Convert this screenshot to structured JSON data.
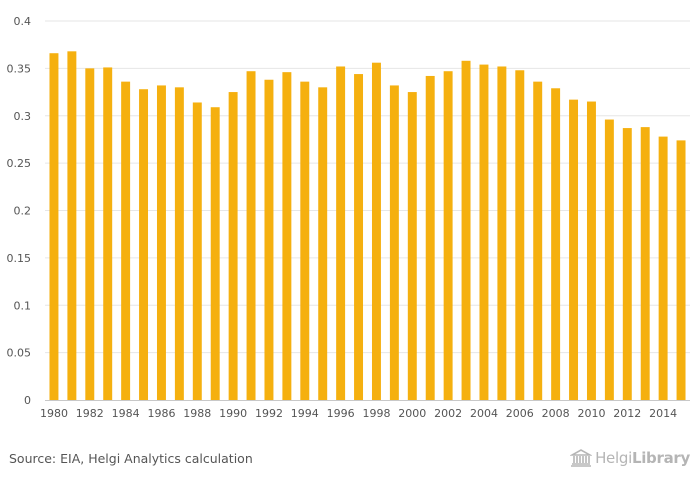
{
  "chart_data": {
    "type": "bar",
    "title": "",
    "xlabel": "",
    "ylabel": "",
    "categories": [
      "1980",
      "1981",
      "1982",
      "1983",
      "1984",
      "1985",
      "1986",
      "1987",
      "1988",
      "1989",
      "1990",
      "1991",
      "1992",
      "1993",
      "1994",
      "1995",
      "1996",
      "1997",
      "1998",
      "1999",
      "2000",
      "2001",
      "2002",
      "2003",
      "2004",
      "2005",
      "2006",
      "2007",
      "2008",
      "2009",
      "2010",
      "2011",
      "2012",
      "2013",
      "2014",
      "2015"
    ],
    "values": [
      0.366,
      0.368,
      0.35,
      0.351,
      0.336,
      0.328,
      0.332,
      0.33,
      0.314,
      0.309,
      0.325,
      0.347,
      0.338,
      0.346,
      0.336,
      0.33,
      0.352,
      0.344,
      0.356,
      0.332,
      0.325,
      0.342,
      0.347,
      0.358,
      0.354,
      0.352,
      0.348,
      0.336,
      0.329,
      0.317,
      0.315,
      0.296,
      0.287,
      0.288,
      0.278,
      0.274
    ],
    "x_tick_labels": [
      "1980",
      "1982",
      "1984",
      "1986",
      "1988",
      "1990",
      "1992",
      "1994",
      "1996",
      "1998",
      "2000",
      "2002",
      "2004",
      "2006",
      "2008",
      "2010",
      "2012",
      "2014"
    ],
    "y_tick_labels": [
      "0",
      "0.05",
      "0.1",
      "0.15",
      "0.2",
      "0.25",
      "0.3",
      "0.35",
      "0.4"
    ],
    "ylim": [
      0,
      0.4
    ],
    "grid": true,
    "legend": "none",
    "bar_color": "#f5b00f"
  },
  "footer": {
    "source": "Source: EIA, Helgi Analytics calculation",
    "brand_light": "Helgi",
    "brand_strong": "Library",
    "brand_color": "#b5b5b5"
  }
}
